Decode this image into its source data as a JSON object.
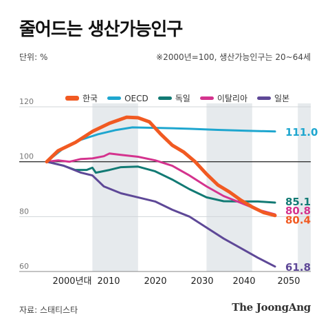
{
  "header": {
    "title": "줄어드는 생산가능인구",
    "unit_label": "단위: %",
    "note": "※2000년=100, 생산가능인구는 20~64세"
  },
  "footer": {
    "source": "자료: 스태티스타",
    "brand": "The JoongAng"
  },
  "chart_data": {
    "type": "line",
    "title": "줄어드는 생산가능인구",
    "ylabel": "",
    "xlabel": "",
    "xlim": [
      2000,
      2050
    ],
    "ylim": [
      60,
      120
    ],
    "yticks": [
      60,
      80,
      100,
      120
    ],
    "baseline": 100,
    "x_ticks": [
      {
        "x": 2004,
        "label": "2000년대"
      },
      {
        "x": 2010,
        "label": "2010"
      },
      {
        "x": 2020,
        "label": "2020"
      },
      {
        "x": 2030,
        "label": "2030"
      },
      {
        "x": 2040,
        "label": "2040"
      },
      {
        "x": 2050,
        "label": "2050"
      }
    ],
    "shaded_bands": [
      [
        2008,
        2016
      ],
      [
        2028,
        2036
      ],
      [
        2044,
        2052
      ]
    ],
    "legend_position": "top",
    "series": [
      {
        "name": "한국",
        "color": "#f15a22",
        "width": 5,
        "end_label": "80.4",
        "points": [
          [
            2000,
            100
          ],
          [
            2002,
            104
          ],
          [
            2005,
            107
          ],
          [
            2008,
            111
          ],
          [
            2011,
            114
          ],
          [
            2014,
            116.2
          ],
          [
            2016,
            116
          ],
          [
            2018,
            114.5
          ],
          [
            2020,
            110
          ],
          [
            2022,
            106
          ],
          [
            2024,
            103.5
          ],
          [
            2026,
            100
          ],
          [
            2028,
            95.5
          ],
          [
            2030,
            91.5
          ],
          [
            2032,
            89
          ],
          [
            2034,
            86
          ],
          [
            2036,
            83.5
          ],
          [
            2038,
            81.5
          ],
          [
            2040,
            80.4
          ]
        ]
      },
      {
        "name": "OECD",
        "color": "#1ea6cf",
        "width": 3,
        "end_label": "111.0",
        "points": [
          [
            2000,
            100
          ],
          [
            2003,
            105
          ],
          [
            2006,
            108
          ],
          [
            2009,
            110
          ],
          [
            2012,
            111.5
          ],
          [
            2015,
            112.5
          ],
          [
            2020,
            112.3
          ],
          [
            2025,
            112
          ],
          [
            2030,
            111.6
          ],
          [
            2035,
            111.3
          ],
          [
            2040,
            111.0
          ]
        ]
      },
      {
        "name": "독일",
        "color": "#127a74",
        "width": 3,
        "end_label": "85.1",
        "points": [
          [
            2000,
            100
          ],
          [
            2003,
            98.5
          ],
          [
            2005,
            97
          ],
          [
            2007,
            97
          ],
          [
            2008,
            97.8
          ],
          [
            2008.6,
            96
          ],
          [
            2011,
            97
          ],
          [
            2013,
            98
          ],
          [
            2016,
            98.2
          ],
          [
            2019,
            96.5
          ],
          [
            2022,
            93.5
          ],
          [
            2025,
            90
          ],
          [
            2028,
            87
          ],
          [
            2031,
            85.6
          ],
          [
            2034,
            85.5
          ],
          [
            2037,
            85.5
          ],
          [
            2040,
            85.1
          ]
        ]
      },
      {
        "name": "이탈리아",
        "color": "#d4338e",
        "width": 3,
        "end_label": "80.8",
        "points": [
          [
            2000,
            100
          ],
          [
            2002,
            100.5
          ],
          [
            2004,
            100
          ],
          [
            2006,
            101
          ],
          [
            2008,
            101.2
          ],
          [
            2010,
            102
          ],
          [
            2011,
            103
          ],
          [
            2013,
            102.5
          ],
          [
            2016,
            101.8
          ],
          [
            2019,
            100.5
          ],
          [
            2022,
            98.5
          ],
          [
            2025,
            95
          ],
          [
            2028,
            91
          ],
          [
            2031,
            87.5
          ],
          [
            2034,
            85
          ],
          [
            2037,
            82.5
          ],
          [
            2040,
            80.8
          ]
        ]
      },
      {
        "name": "일본",
        "color": "#5e4897",
        "width": 3,
        "end_label": "61.8",
        "points": [
          [
            2000,
            100
          ],
          [
            2003,
            98.5
          ],
          [
            2006,
            96
          ],
          [
            2008,
            95
          ],
          [
            2010,
            91
          ],
          [
            2013,
            88.5
          ],
          [
            2016,
            87
          ],
          [
            2019,
            85.5
          ],
          [
            2022,
            82.5
          ],
          [
            2025,
            80
          ],
          [
            2028,
            76
          ],
          [
            2031,
            72
          ],
          [
            2034,
            68.5
          ],
          [
            2037,
            65
          ],
          [
            2040,
            61.8
          ]
        ]
      }
    ]
  }
}
